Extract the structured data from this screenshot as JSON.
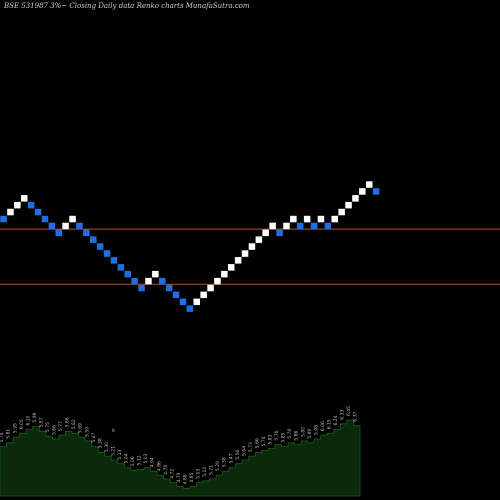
{
  "header": {
    "text": "BSE 531987 3%~   Closing Daily data  Renko  charts MunafaSutra.com"
  },
  "colors": {
    "background": "#000000",
    "up_brick": "#ffffff",
    "down_brick": "#1f6fe0",
    "level_line": "#b0561d",
    "volume_fill": "#0b2a0b",
    "volume_edge": "#1f5a1f"
  },
  "chart_data": {
    "type": "renko",
    "bricks": [
      {
        "dir": "down",
        "level": 19
      },
      {
        "dir": "up",
        "level": 20
      },
      {
        "dir": "up",
        "level": 21
      },
      {
        "dir": "up",
        "level": 22
      },
      {
        "dir": "down",
        "level": 21
      },
      {
        "dir": "down",
        "level": 20
      },
      {
        "dir": "down",
        "level": 19
      },
      {
        "dir": "down",
        "level": 18
      },
      {
        "dir": "down",
        "level": 17
      },
      {
        "dir": "up",
        "level": 18
      },
      {
        "dir": "up",
        "level": 19
      },
      {
        "dir": "down",
        "level": 18
      },
      {
        "dir": "down",
        "level": 17
      },
      {
        "dir": "down",
        "level": 16
      },
      {
        "dir": "down",
        "level": 15
      },
      {
        "dir": "down",
        "level": 14
      },
      {
        "dir": "down",
        "level": 13
      },
      {
        "dir": "down",
        "level": 12
      },
      {
        "dir": "down",
        "level": 11
      },
      {
        "dir": "down",
        "level": 10
      },
      {
        "dir": "down",
        "level": 9
      },
      {
        "dir": "up",
        "level": 10
      },
      {
        "dir": "up",
        "level": 11
      },
      {
        "dir": "down",
        "level": 10
      },
      {
        "dir": "down",
        "level": 9
      },
      {
        "dir": "down",
        "level": 8
      },
      {
        "dir": "down",
        "level": 7
      },
      {
        "dir": "down",
        "level": 6
      },
      {
        "dir": "up",
        "level": 7
      },
      {
        "dir": "up",
        "level": 8
      },
      {
        "dir": "up",
        "level": 9
      },
      {
        "dir": "up",
        "level": 10
      },
      {
        "dir": "up",
        "level": 11
      },
      {
        "dir": "up",
        "level": 12
      },
      {
        "dir": "up",
        "level": 13
      },
      {
        "dir": "up",
        "level": 14
      },
      {
        "dir": "up",
        "level": 15
      },
      {
        "dir": "up",
        "level": 16
      },
      {
        "dir": "up",
        "level": 17
      },
      {
        "dir": "up",
        "level": 18
      },
      {
        "dir": "down",
        "level": 17
      },
      {
        "dir": "up",
        "level": 18
      },
      {
        "dir": "up",
        "level": 19
      },
      {
        "dir": "down",
        "level": 18
      },
      {
        "dir": "up",
        "level": 19
      },
      {
        "dir": "down",
        "level": 18
      },
      {
        "dir": "up",
        "level": 19
      },
      {
        "dir": "down",
        "level": 18
      },
      {
        "dir": "up",
        "level": 19
      },
      {
        "dir": "up",
        "level": 20
      },
      {
        "dir": "up",
        "level": 21
      },
      {
        "dir": "up",
        "level": 22
      },
      {
        "dir": "up",
        "level": 23
      },
      {
        "dir": "up",
        "level": 24
      },
      {
        "dir": "down",
        "level": 23
      }
    ],
    "level_lines": [
      18,
      10
    ],
    "volume": [
      0.52,
      0.56,
      0.62,
      0.66,
      0.7,
      0.73,
      0.68,
      0.63,
      0.6,
      0.64,
      0.68,
      0.66,
      0.62,
      0.58,
      0.52,
      0.46,
      0.42,
      0.38,
      0.34,
      0.3,
      0.27,
      0.28,
      0.3,
      0.26,
      0.22,
      0.18,
      0.14,
      0.1,
      0.08,
      0.1,
      0.14,
      0.16,
      0.18,
      0.22,
      0.26,
      0.3,
      0.34,
      0.38,
      0.42,
      0.46,
      0.48,
      0.5,
      0.54,
      0.52,
      0.56,
      0.54,
      0.58,
      0.56,
      0.6,
      0.64,
      0.66,
      0.7,
      0.76,
      0.8,
      0.74
    ],
    "value_labels": [
      "5.74",
      "5.81",
      "5.95",
      "6.05",
      "6.10",
      "5.98",
      "5.87",
      "5.75",
      "5.66",
      "5.77",
      "5.86",
      "5.82",
      "5.69",
      "5.59",
      "5.47",
      "5.38",
      "5.30",
      "5.21",
      "5.13",
      "5.04",
      "5.06",
      "5.12",
      "5.03",
      "4.94",
      "4.86",
      "4.78",
      "4.72",
      "4.79",
      "4.88",
      "4.95",
      "5.03",
      "5.12",
      "5.21",
      "5.29",
      "5.38",
      "5.47",
      "5.56",
      "5.64",
      "5.73",
      "5.66",
      "5.74",
      "5.83",
      "5.76",
      "5.85",
      "5.78",
      "5.86",
      "5.80",
      "5.89",
      "5.98",
      "6.06",
      "6.15",
      "6.24",
      "6.33",
      "6.45",
      "6.37"
    ],
    "stray_label": "6"
  }
}
